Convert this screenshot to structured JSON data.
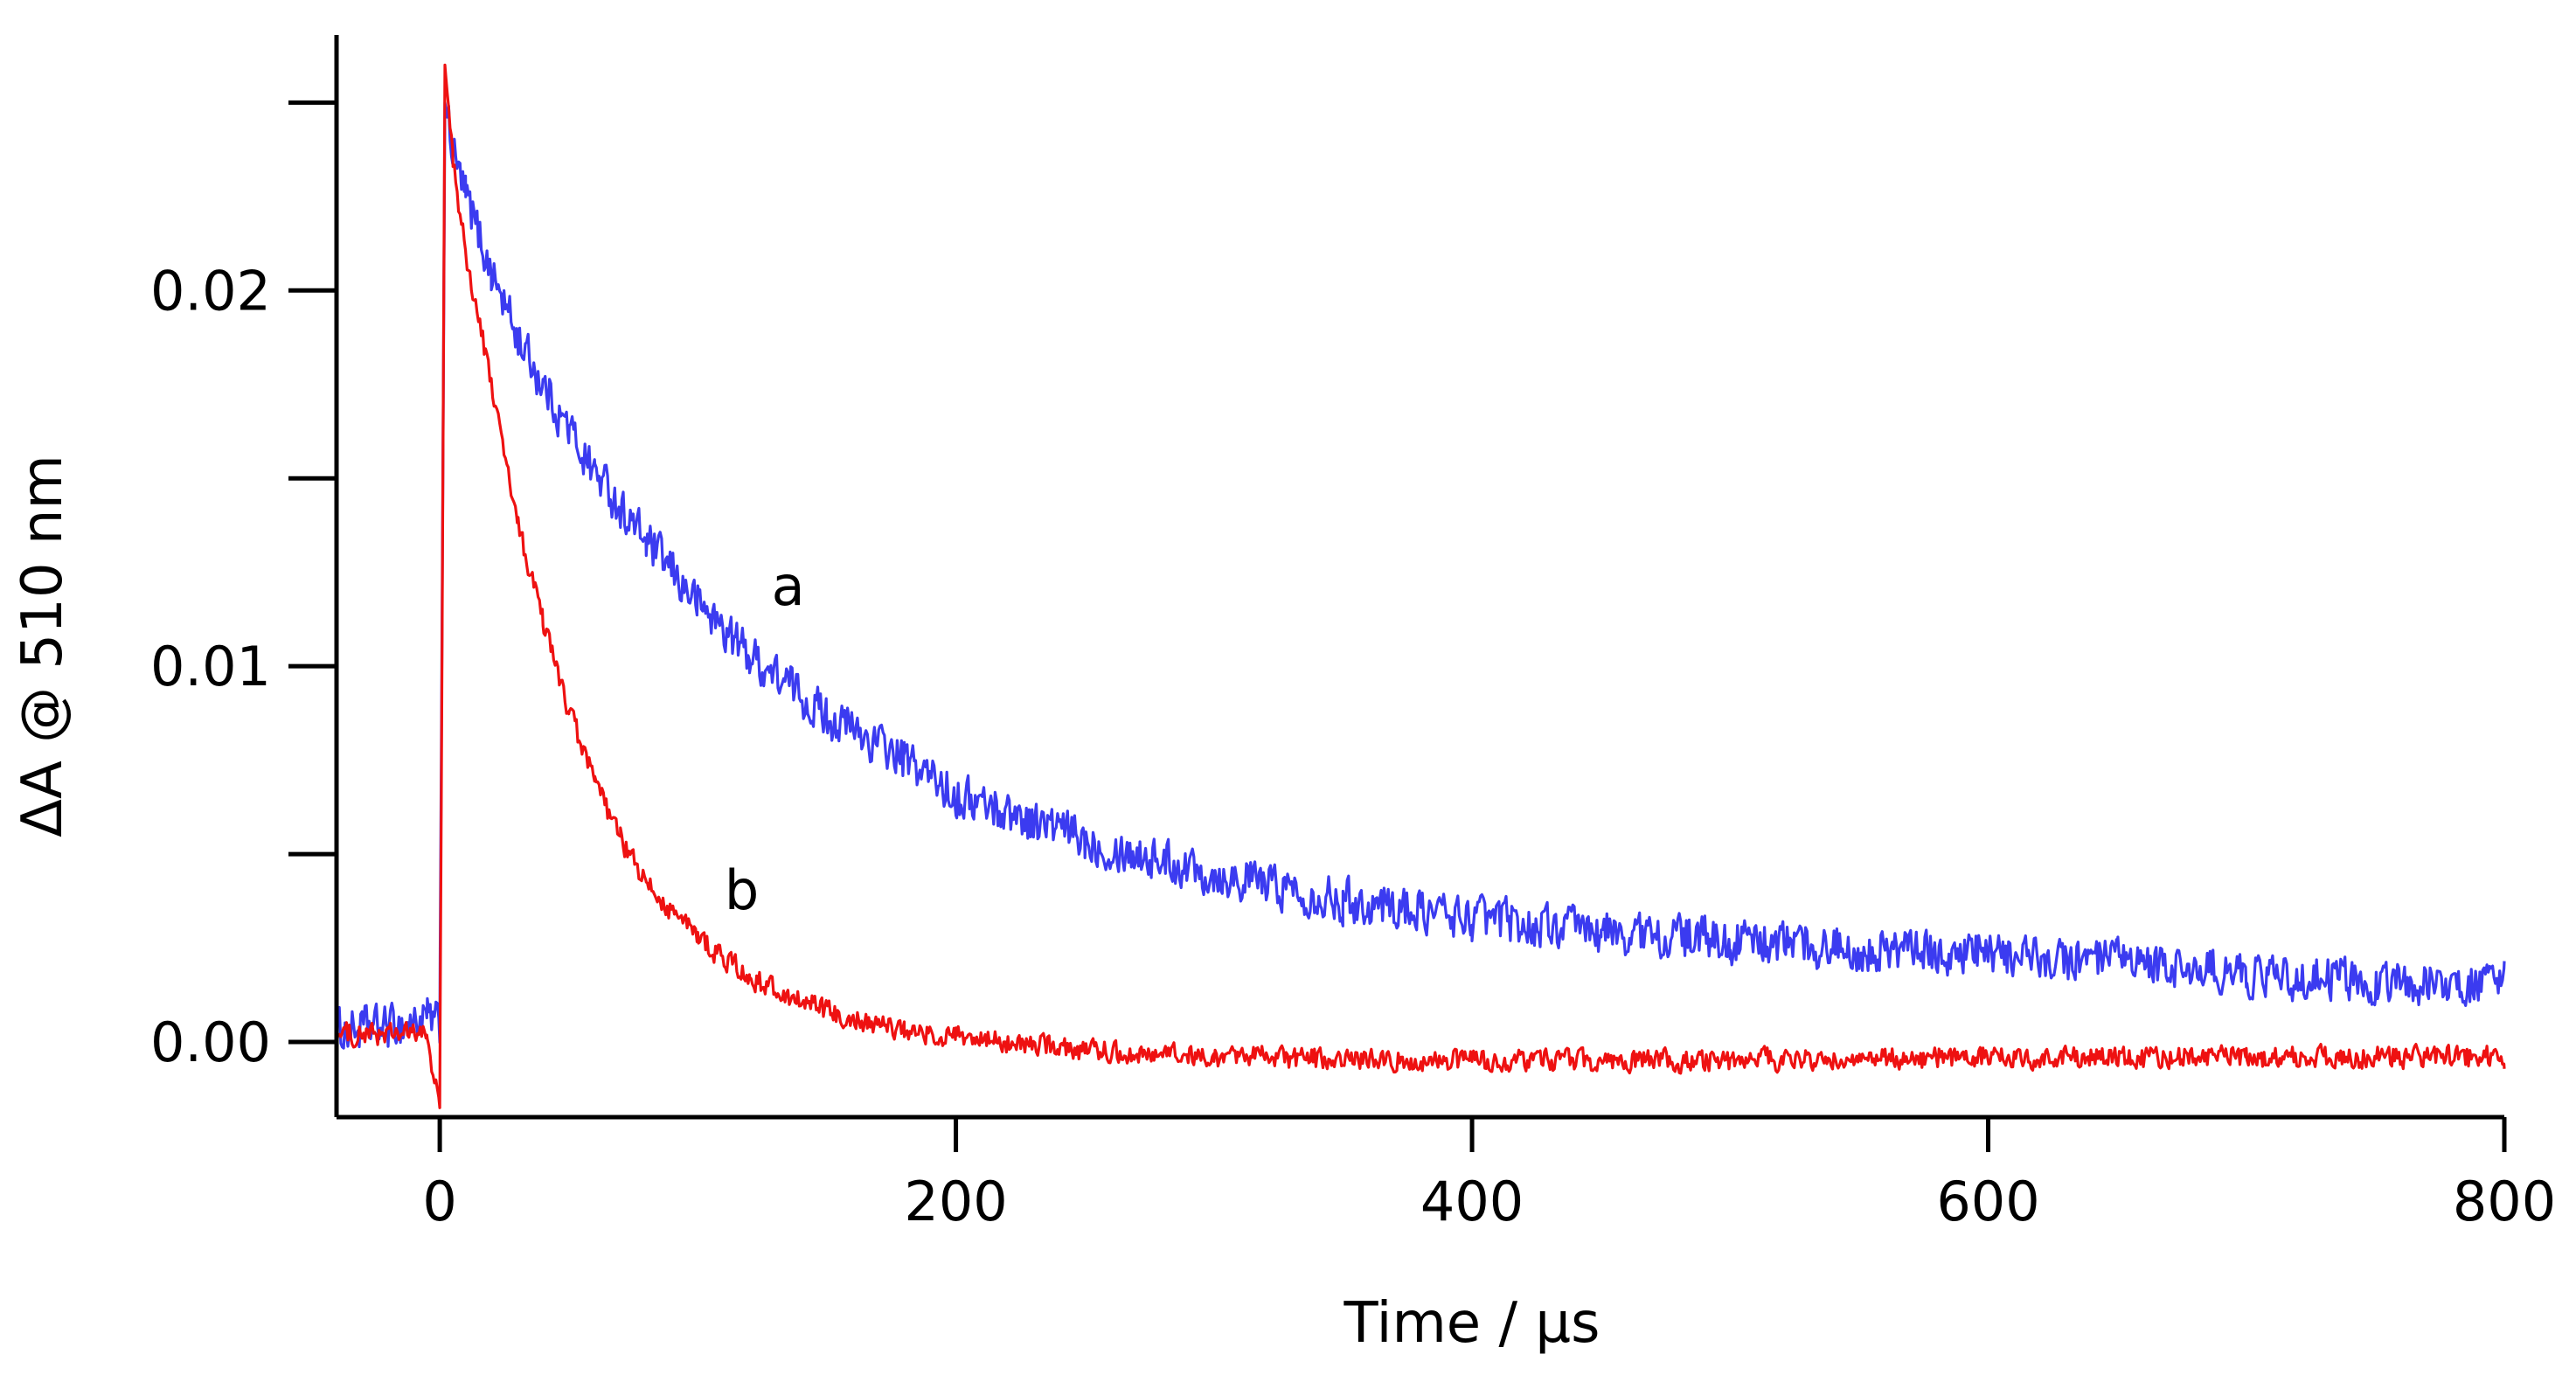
{
  "chart_data": {
    "type": "line",
    "title": "",
    "xlabel": "Time / µs",
    "ylabel": "ΔA @ 510 nm",
    "xlim": [
      -40,
      800
    ],
    "ylim": [
      -0.002,
      0.0268
    ],
    "x_ticks": [
      0,
      200,
      400,
      600,
      800
    ],
    "x_tick_labels": [
      "0",
      "200",
      "400",
      "600",
      "800"
    ],
    "y_ticks_major": [
      0.0,
      0.01,
      0.02
    ],
    "y_tick_labels": [
      "0.00",
      "0.01",
      "0.02"
    ],
    "y_ticks_minor": [
      0.005,
      0.015,
      0.025
    ],
    "grid": false,
    "series": [
      {
        "name": "a",
        "color": "#3b3bf0",
        "x": [
          -40,
          -20,
          -5,
          0,
          2,
          5,
          10,
          20,
          30,
          40,
          50,
          60,
          80,
          100,
          120,
          150,
          180,
          200,
          250,
          300,
          350,
          400,
          450,
          500,
          550,
          600,
          650,
          700,
          750,
          800
        ],
        "y": [
          0.0003,
          0.0004,
          0.0006,
          0.0004,
          0.025,
          0.0237,
          0.0225,
          0.0205,
          0.0188,
          0.0175,
          0.0163,
          0.0152,
          0.0133,
          0.0117,
          0.0103,
          0.0087,
          0.0075,
          0.0066,
          0.0054,
          0.0045,
          0.0038,
          0.0033,
          0.0029,
          0.0027,
          0.0025,
          0.0023,
          0.0021,
          0.0018,
          0.0016,
          0.0015
        ]
      },
      {
        "name": "b",
        "color": "#ee1111",
        "x": [
          -40,
          -20,
          -5,
          0,
          2,
          5,
          10,
          20,
          30,
          40,
          50,
          60,
          70,
          80,
          100,
          120,
          150,
          180,
          200,
          250,
          300,
          400,
          500,
          600,
          700,
          800
        ],
        "y": [
          0.0002,
          0.0002,
          0.0002,
          -0.0018,
          0.026,
          0.0235,
          0.021,
          0.0175,
          0.0138,
          0.0112,
          0.0088,
          0.0069,
          0.0054,
          0.0042,
          0.0028,
          0.0017,
          0.0008,
          0.0003,
          0.0001,
          -0.0002,
          -0.0004,
          -0.0005,
          -0.0005,
          -0.0004,
          -0.0004,
          -0.0004
        ]
      }
    ],
    "annotations": [
      {
        "text": "a",
        "x": 135,
        "y": 0.0121
      },
      {
        "text": "b",
        "x": 117,
        "y": 0.004
      }
    ]
  }
}
